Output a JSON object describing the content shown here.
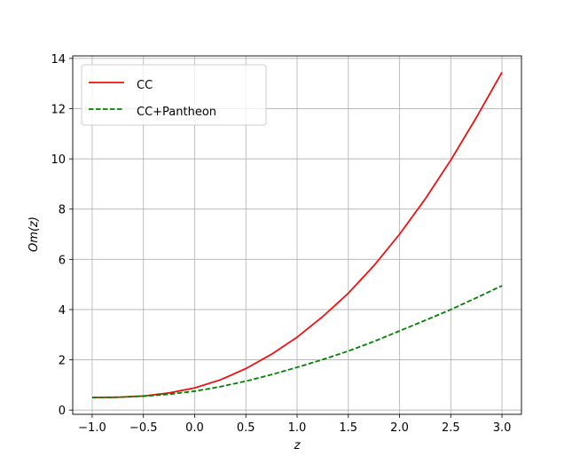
{
  "chart_data": {
    "type": "line",
    "x": [
      -1,
      -0.75,
      -0.5,
      -0.25,
      0,
      0.25,
      0.5,
      0.75,
      1,
      1.25,
      1.5,
      1.75,
      2,
      2.25,
      2.5,
      2.75,
      3
    ],
    "series": [
      {
        "name": "CC",
        "color": "#ee1111",
        "dash": "solid",
        "values": [
          0.5,
          0.51,
          0.56,
          0.68,
          0.88,
          1.2,
          1.65,
          2.22,
          2.9,
          3.72,
          4.65,
          5.75,
          7.0,
          8.4,
          9.95,
          11.65,
          13.45
        ]
      },
      {
        "name": "CC+Pantheon",
        "color": "#008000",
        "dash": "dashed",
        "values": [
          0.5,
          0.51,
          0.55,
          0.63,
          0.75,
          0.93,
          1.15,
          1.41,
          1.7,
          2.01,
          2.35,
          2.73,
          3.15,
          3.57,
          4.0,
          4.47,
          4.95
        ]
      }
    ],
    "xlabel": "z",
    "ylabel": "Om(z)",
    "xlim": [
      -1.19,
      3.19
    ],
    "ylim": [
      -0.17,
      14.1
    ],
    "xticks": [
      {
        "value": -1,
        "label": "−1.0"
      },
      {
        "value": -0.5,
        "label": "−0.5"
      },
      {
        "value": 0,
        "label": "0.0"
      },
      {
        "value": 0.5,
        "label": "0.5"
      },
      {
        "value": 1,
        "label": "1.0"
      },
      {
        "value": 1.5,
        "label": "1.5"
      },
      {
        "value": 2,
        "label": "2.0"
      },
      {
        "value": 2.5,
        "label": "2.5"
      },
      {
        "value": 3,
        "label": "3.0"
      }
    ],
    "yticks": [
      0,
      2,
      4,
      6,
      8,
      10,
      12,
      14
    ],
    "grid": true,
    "legend": "upper-left"
  }
}
